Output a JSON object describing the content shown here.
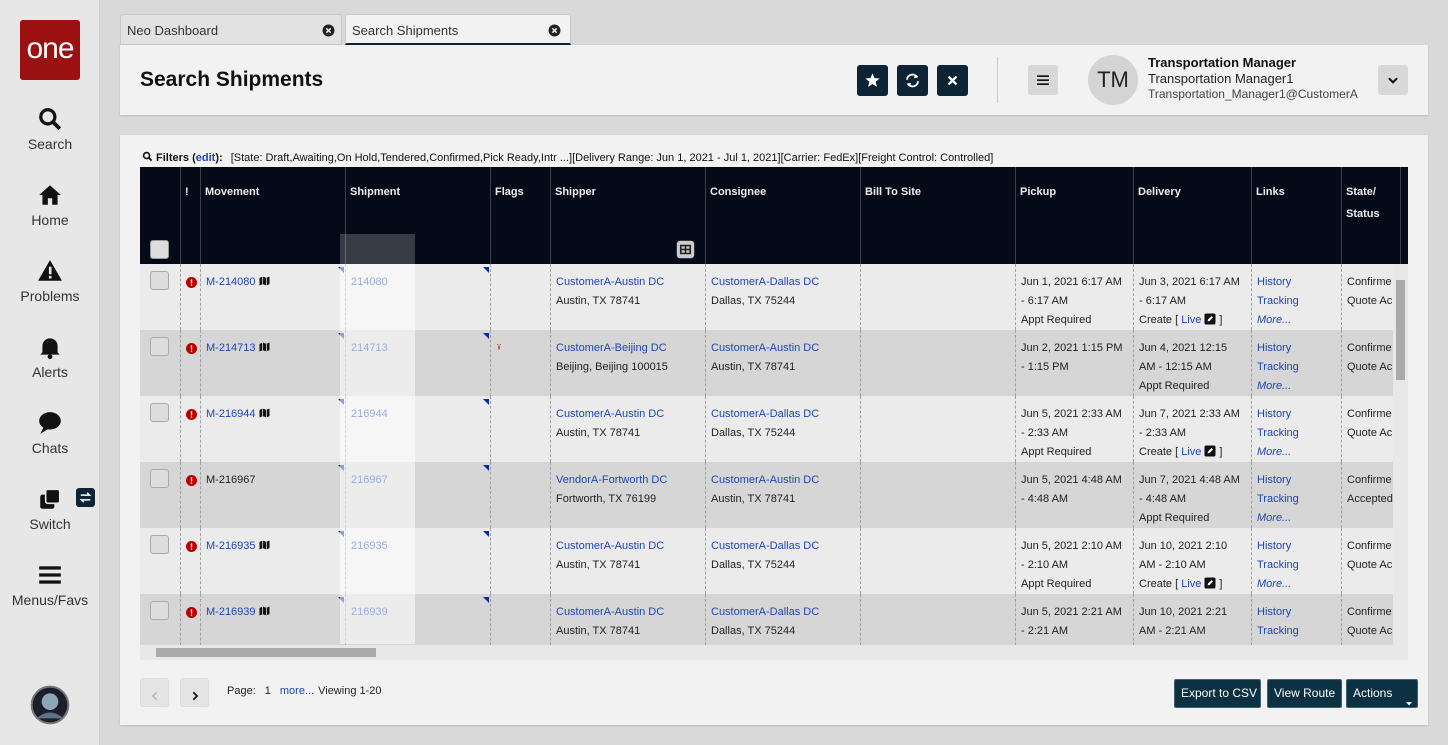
{
  "sidebar": {
    "logo": "one",
    "items": [
      "Search",
      "Home",
      "Problems",
      "Alerts",
      "Chats",
      "Switch",
      "Menus/Favs"
    ]
  },
  "tabs": [
    "Neo Dashboard",
    "Search Shipments"
  ],
  "header": {
    "title": "Search Shipments",
    "user": {
      "initials": "TM",
      "name": "Transportation Manager",
      "role": "Transportation Manager1",
      "email": "Transportation_Manager1@CustomerA"
    }
  },
  "filters": {
    "label": "Filters",
    "open": "(",
    "edit": "edit",
    "close": "):",
    "text": "[State: Draft,Awaiting,On Hold,Tendered,Confirmed,Pick Ready,Intr ...][Delivery Range: Jun 1, 2021 - Jul 1, 2021][Carrier: FedEx][Freight Control: Controlled]"
  },
  "table": {
    "columns": [
      "!",
      "Movement",
      "Shipment",
      "Flags",
      "Shipper",
      "Consignee",
      "Bill To Site",
      "Pickup",
      "Delivery",
      "Links",
      "State/ Status"
    ],
    "rows": [
      {
        "movement": "M-214080",
        "movement_is_link": true,
        "shipment": "214080",
        "flag": false,
        "shipper": [
          "CustomerA-Austin DC",
          "Austin, TX 78741"
        ],
        "consignee": [
          "CustomerA-Dallas DC",
          "Dallas, TX 75244"
        ],
        "pickup": [
          "Jun 1, 2021 6:17 AM",
          "- 6:17 AM",
          "Appt Required"
        ],
        "delivery": [
          "Jun 3, 2021 6:17 AM",
          "- 6:17 AM"
        ],
        "delivery_note": {
          "before": "Create [",
          "link": "Live",
          "after": "]"
        },
        "links": [
          "History",
          "Tracking",
          "More..."
        ],
        "status": [
          "Confirme",
          "Quote Ac"
        ]
      },
      {
        "movement": "M-214713",
        "movement_is_link": true,
        "shipment": "214713",
        "flag": true,
        "shipper": [
          "CustomerA-Beijing DC",
          "Beijing, Beijing 100015"
        ],
        "consignee": [
          "CustomerA-Austin DC",
          "Austin, TX 78741"
        ],
        "pickup": [
          "Jun 2, 2021 1:15 PM",
          "- 1:15 PM"
        ],
        "delivery": [
          "Jun 4, 2021 12:15",
          "AM - 12:15 AM",
          "Appt Required"
        ],
        "links": [
          "History",
          "Tracking",
          "More..."
        ],
        "status": [
          "Confirme",
          "Quote Ac"
        ]
      },
      {
        "movement": "M-216944",
        "movement_is_link": true,
        "shipment": "216944",
        "flag": false,
        "shipper": [
          "CustomerA-Austin DC",
          "Austin, TX 78741"
        ],
        "consignee": [
          "CustomerA-Dallas DC",
          "Dallas, TX 75244"
        ],
        "pickup": [
          "Jun 5, 2021 2:33 AM",
          "- 2:33 AM",
          "Appt Required"
        ],
        "delivery": [
          "Jun 7, 2021 2:33 AM",
          "- 2:33 AM"
        ],
        "delivery_note": {
          "before": "Create [",
          "link": "Live",
          "after": "]"
        },
        "links": [
          "History",
          "Tracking",
          "More..."
        ],
        "status": [
          "Confirme",
          "Quote Ac"
        ]
      },
      {
        "movement": "M-216967",
        "movement_is_link": false,
        "shipment": "216967",
        "flag": false,
        "shipper": [
          "VendorA-Fortworth DC",
          "Fortworth, TX 76199"
        ],
        "consignee": [
          "CustomerA-Austin DC",
          "Austin, TX 78741"
        ],
        "pickup": [
          "Jun 5, 2021 4:48 AM",
          "- 4:48 AM"
        ],
        "delivery": [
          "Jun 7, 2021 4:48 AM",
          "- 4:48 AM",
          "Appt Required"
        ],
        "links": [
          "History",
          "Tracking",
          "More..."
        ],
        "status": [
          "Confirme",
          "Accepted"
        ]
      },
      {
        "movement": "M-216935",
        "movement_is_link": true,
        "shipment": "216935",
        "flag": false,
        "shipper": [
          "CustomerA-Austin DC",
          "Austin, TX 78741"
        ],
        "consignee": [
          "CustomerA-Dallas DC",
          "Dallas, TX 75244"
        ],
        "pickup": [
          "Jun 5, 2021 2:10 AM",
          "- 2:10 AM",
          "Appt Required"
        ],
        "delivery": [
          "Jun 10, 2021 2:10",
          "AM - 2:10 AM"
        ],
        "delivery_note": {
          "before": "Create [",
          "link": "Live",
          "after": "]"
        },
        "links": [
          "History",
          "Tracking",
          "More..."
        ],
        "status": [
          "Confirme",
          "Quote Ac"
        ]
      },
      {
        "movement": "M-216939",
        "movement_is_link": true,
        "shipment": "216939",
        "flag": false,
        "shipper": [
          "CustomerA-Austin DC",
          "Austin, TX 78741"
        ],
        "consignee": [
          "CustomerA-Dallas DC",
          "Dallas, TX 75244"
        ],
        "pickup": [
          "Jun 5, 2021 2:21 AM",
          "- 2:21 AM"
        ],
        "delivery": [
          "Jun 10, 2021 2:21",
          "AM - 2:21 AM"
        ],
        "links": [
          "History",
          "Tracking"
        ],
        "status": [
          "Confirme",
          "Quote Ac"
        ]
      }
    ]
  },
  "pagination": {
    "label": "Page:",
    "page": "1",
    "more": "more...",
    "viewing": "Viewing 1-20"
  },
  "actions": [
    "Export to CSV",
    "View Route",
    "Actions"
  ]
}
